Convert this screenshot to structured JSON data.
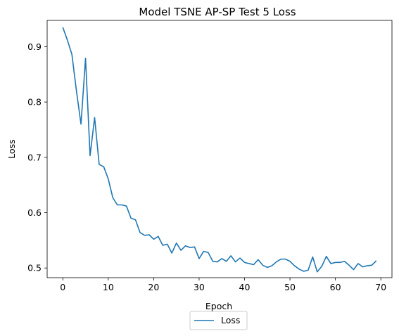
{
  "chart_data": {
    "type": "line",
    "title": "Model TSNE AP-SP Test 5 Loss",
    "xlabel": "Epoch",
    "ylabel": "Loss",
    "xlim": [
      -3.45,
      72.45
    ],
    "ylim": [
      0.4825,
      0.9475
    ],
    "x_ticks": [
      0,
      10,
      20,
      30,
      40,
      50,
      60,
      70
    ],
    "y_ticks": [
      0.5,
      0.6,
      0.7,
      0.8,
      0.9
    ],
    "y_tick_labels": [
      "0.5",
      "0.6",
      "0.7",
      "0.8",
      "0.9"
    ],
    "grid": false,
    "legend": {
      "placement": "below-center",
      "entries": [
        "Loss"
      ]
    },
    "series": [
      {
        "name": "Loss",
        "color": "#1f77b4",
        "x": [
          0,
          1,
          2,
          3,
          4,
          5,
          6,
          7,
          8,
          9,
          10,
          11,
          12,
          13,
          14,
          15,
          16,
          17,
          18,
          19,
          20,
          21,
          22,
          23,
          24,
          25,
          26,
          27,
          28,
          29,
          30,
          31,
          32,
          33,
          34,
          35,
          36,
          37,
          38,
          39,
          40,
          41,
          42,
          43,
          44,
          45,
          46,
          47,
          48,
          49,
          50,
          51,
          52,
          53,
          54,
          55,
          56,
          57,
          58,
          59,
          60,
          61,
          62,
          63,
          64,
          65,
          66,
          67,
          68,
          69
        ],
        "values": [
          0.935,
          0.912,
          0.886,
          0.82,
          0.76,
          0.879,
          0.703,
          0.772,
          0.687,
          0.683,
          0.661,
          0.627,
          0.614,
          0.614,
          0.612,
          0.59,
          0.587,
          0.564,
          0.559,
          0.56,
          0.552,
          0.557,
          0.541,
          0.543,
          0.527,
          0.545,
          0.532,
          0.54,
          0.537,
          0.538,
          0.517,
          0.53,
          0.528,
          0.512,
          0.511,
          0.517,
          0.512,
          0.522,
          0.511,
          0.518,
          0.51,
          0.508,
          0.506,
          0.515,
          0.505,
          0.501,
          0.504,
          0.511,
          0.516,
          0.516,
          0.512,
          0.504,
          0.498,
          0.494,
          0.496,
          0.52,
          0.493,
          0.503,
          0.521,
          0.508,
          0.51,
          0.51,
          0.512,
          0.505,
          0.497,
          0.508,
          0.502,
          0.504,
          0.505,
          0.513
        ]
      }
    ]
  }
}
